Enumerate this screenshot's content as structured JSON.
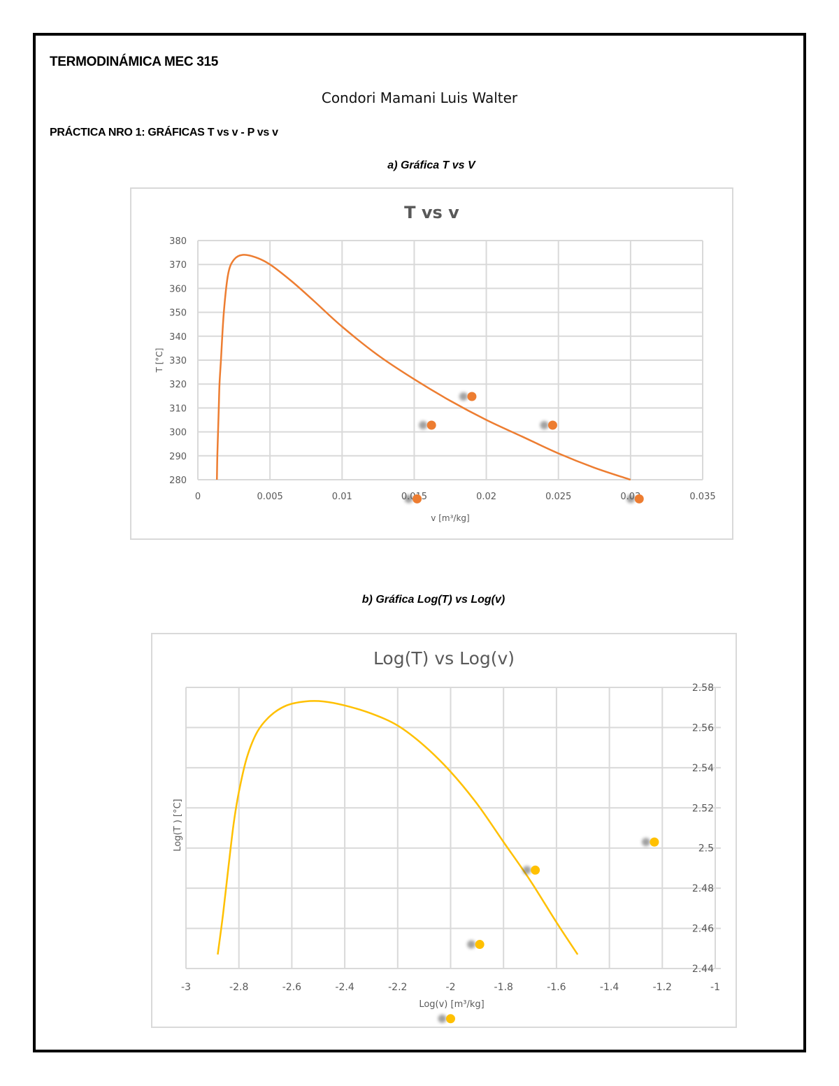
{
  "document": {
    "course_title": "TERMODINÁMICA MEC 315",
    "author": "Condori Mamani Luis Walter",
    "practice_title": "PRÁCTICA NRO 1: GRÁFICAS T vs v - P vs v",
    "section_a": "a)   Gráfica T vs V",
    "section_b": "b)   Gráfica Log(T) vs Log(v)"
  },
  "colors": {
    "orange": "#ED7D31",
    "yellow": "#FFC000",
    "grid": "#d9d9d9",
    "axis_text": "#595959",
    "shadow": "#555555"
  },
  "chart_data": [
    {
      "type": "scatter",
      "title": "T vs v",
      "xlabel": "v [m³/kg]",
      "ylabel": "T [°C]",
      "xlim": [
        0,
        0.035
      ],
      "ylim": [
        280,
        380
      ],
      "x_ticks": [
        "0",
        "0.005",
        "0.01",
        "0.015",
        "0.02",
        "0.025",
        "0.03",
        "0.035"
      ],
      "y_ticks": [
        "380",
        "370",
        "360",
        "350",
        "340",
        "330",
        "320",
        "310",
        "300",
        "290",
        "280"
      ],
      "grid": true,
      "legend": "none",
      "series": [
        {
          "name": "Saturation curve",
          "kind": "line",
          "color": "#ED7D31",
          "x": [
            0.00132,
            0.00135,
            0.0014,
            0.00145,
            0.0015,
            0.0016,
            0.0018,
            0.0021,
            0.0025,
            0.0031,
            0.004,
            0.005,
            0.0065,
            0.008,
            0.01,
            0.0125,
            0.015,
            0.0175,
            0.02,
            0.0225,
            0.025,
            0.0275,
            0.03
          ],
          "y": [
            280,
            290,
            300,
            310,
            320,
            330,
            350,
            366,
            372,
            374,
            373,
            370,
            363,
            355,
            344,
            332,
            322,
            313,
            305,
            298,
            291,
            285,
            280
          ]
        },
        {
          "name": "State points",
          "kind": "markers",
          "color": "#ED7D31",
          "x": [
            0.0162,
            0.019,
            0.0246,
            0.0152,
            0.0306
          ],
          "y": [
            302.8,
            314.8,
            302.8,
            272,
            272
          ]
        }
      ]
    },
    {
      "type": "scatter",
      "title": "Log(T) vs Log(v)",
      "xlabel": "Log(v) [m³/kg]",
      "ylabel": "Log(T ) [°C]",
      "xlim": [
        -3,
        -1
      ],
      "ylim": [
        2.44,
        2.58
      ],
      "y_axis_position": "right",
      "x_ticks": [
        "-3",
        "-2.8",
        "-2.6",
        "-2.4",
        "-2.2",
        "-2",
        "-1.8",
        "-1.6",
        "-1.4",
        "-1.2",
        "-1"
      ],
      "y_ticks": [
        "2.58",
        "2.56",
        "2.54",
        "2.52",
        "2.5",
        "2.48",
        "2.46",
        "2.44"
      ],
      "grid": true,
      "legend": "none",
      "series": [
        {
          "name": "Saturation curve (log)",
          "kind": "line",
          "color": "#FFC000",
          "x": [
            -2.88,
            -2.86,
            -2.84,
            -2.82,
            -2.8,
            -2.77,
            -2.73,
            -2.68,
            -2.62,
            -2.55,
            -2.48,
            -2.4,
            -2.3,
            -2.2,
            -2.1,
            -2.0,
            -1.9,
            -1.8,
            -1.7,
            -1.6,
            -1.52
          ],
          "y": [
            2.447,
            2.467,
            2.49,
            2.512,
            2.528,
            2.545,
            2.558,
            2.566,
            2.571,
            2.573,
            2.573,
            2.571,
            2.567,
            2.561,
            2.551,
            2.538,
            2.522,
            2.503,
            2.484,
            2.463,
            2.447
          ]
        },
        {
          "name": "State points (log)",
          "kind": "markers",
          "color": "#FFC000",
          "x": [
            -1.23,
            -1.68,
            -1.89,
            -2.0
          ],
          "y": [
            2.503,
            2.489,
            2.452,
            2.415
          ]
        }
      ]
    }
  ]
}
